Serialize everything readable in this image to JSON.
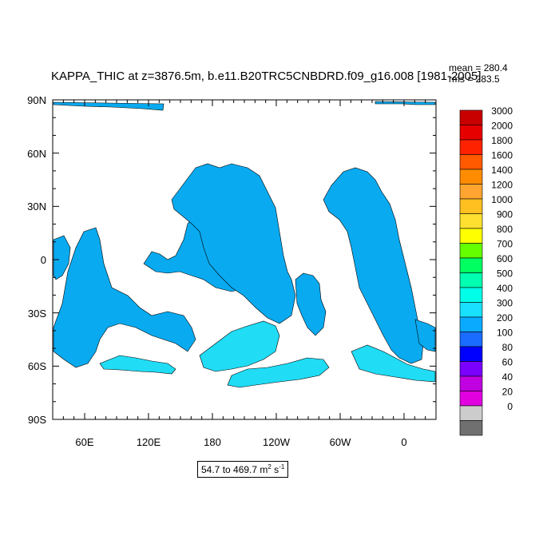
{
  "title": "KAPPA_THIC at z=3876.5m, b.e11.B20TRC5CNBDRD.f09_g16.008 [1981-2005]",
  "stats": {
    "mean": "mean = 280.4",
    "rms": "rms = 283.5"
  },
  "lat_labels": [
    "90N",
    "60N",
    "30N",
    "0",
    "30S",
    "60S",
    "90S"
  ],
  "lon_labels": [
    "60E",
    "120E",
    "180",
    "120W",
    "60W",
    "0"
  ],
  "range_label": {
    "text": "54.7 to 469.7 m",
    "unit_sup1": "2",
    "unit_mid": " s",
    "unit_sup2": "-1"
  },
  "colorbar": {
    "labels": [
      "3000",
      "2000",
      "1800",
      "1600",
      "1400",
      "1200",
      "1000",
      "900",
      "800",
      "700",
      "600",
      "500",
      "400",
      "300",
      "200",
      "100",
      "80",
      "60",
      "40",
      "20",
      "0"
    ],
    "colors": [
      "#c80000",
      "#e60000",
      "#ff2200",
      "#ff5a00",
      "#ff8c00",
      "#ffa530",
      "#ffc020",
      "#ffe030",
      "#ffff00",
      "#66ff00",
      "#00ff60",
      "#00ffb0",
      "#00ffe8",
      "#19e0ff",
      "#0aaaff",
      "#1a6bff",
      "#0000ff",
      "#7a00ff",
      "#c000e0",
      "#e000e0",
      "#cccccc",
      "#707070"
    ]
  },
  "colors": {
    "ocean_fill": "#09aaf0",
    "ocean_fill_light": "#20dcf5",
    "land": "#ffffff",
    "coast": "#000000"
  }
}
